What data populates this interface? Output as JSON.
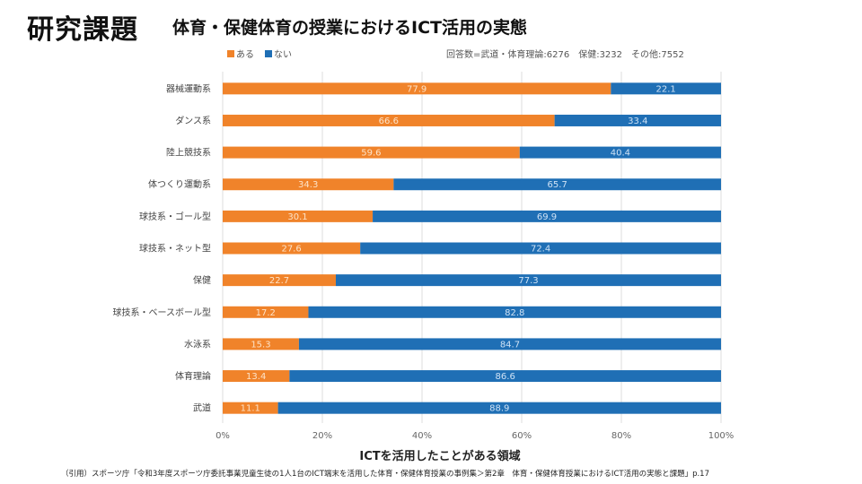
{
  "slide": {
    "title": "研究課題",
    "subtitle": "体育・保健体育の授業におけるICT活用の実態",
    "respondents": "回答数=武道・体育理論:6276　保健:3232　その他:7552",
    "citation": "（引用）スポーツ庁「令和3年度スポーツ庁委託事業児童生徒の1人1台のICT端末を活用した体育・保健体育授業の事例集＞第2章　体育・保健体育授業におけるICT活用の実態と課題」p.17"
  },
  "colors": {
    "yes": "#f0832a",
    "no": "#1f6fb5",
    "grid": "#dddddd",
    "label_on_yes": "#fde3c8",
    "label_on_no": "#cfe2f5"
  },
  "chart_data": {
    "type": "bar",
    "orientation": "horizontal",
    "stacked": true,
    "title": "",
    "xlabel": "ICTを活用したことがある領域",
    "ylabel": "",
    "xlim": [
      0,
      100
    ],
    "x_ticks": [
      "0%",
      "20%",
      "40%",
      "60%",
      "80%",
      "100%"
    ],
    "x_tick_values": [
      0,
      20,
      40,
      60,
      80,
      100
    ],
    "grid": true,
    "legend_position": "top-left",
    "categories": [
      "器械運動系",
      "ダンス系",
      "陸上競技系",
      "体つくり運動系",
      "球技系・ゴール型",
      "球技系・ネット型",
      "保健",
      "球技系・ベースボール型",
      "水泳系",
      "体育理論",
      "武道"
    ],
    "series": [
      {
        "name": "ある",
        "color": "#f0832a",
        "values": [
          77.9,
          66.6,
          59.6,
          34.3,
          30.1,
          27.6,
          22.7,
          17.2,
          15.3,
          13.4,
          11.1
        ]
      },
      {
        "name": "ない",
        "color": "#1f6fb5",
        "values": [
          22.1,
          33.4,
          40.4,
          65.7,
          69.9,
          72.4,
          77.3,
          82.8,
          84.7,
          86.6,
          88.9
        ]
      }
    ]
  }
}
